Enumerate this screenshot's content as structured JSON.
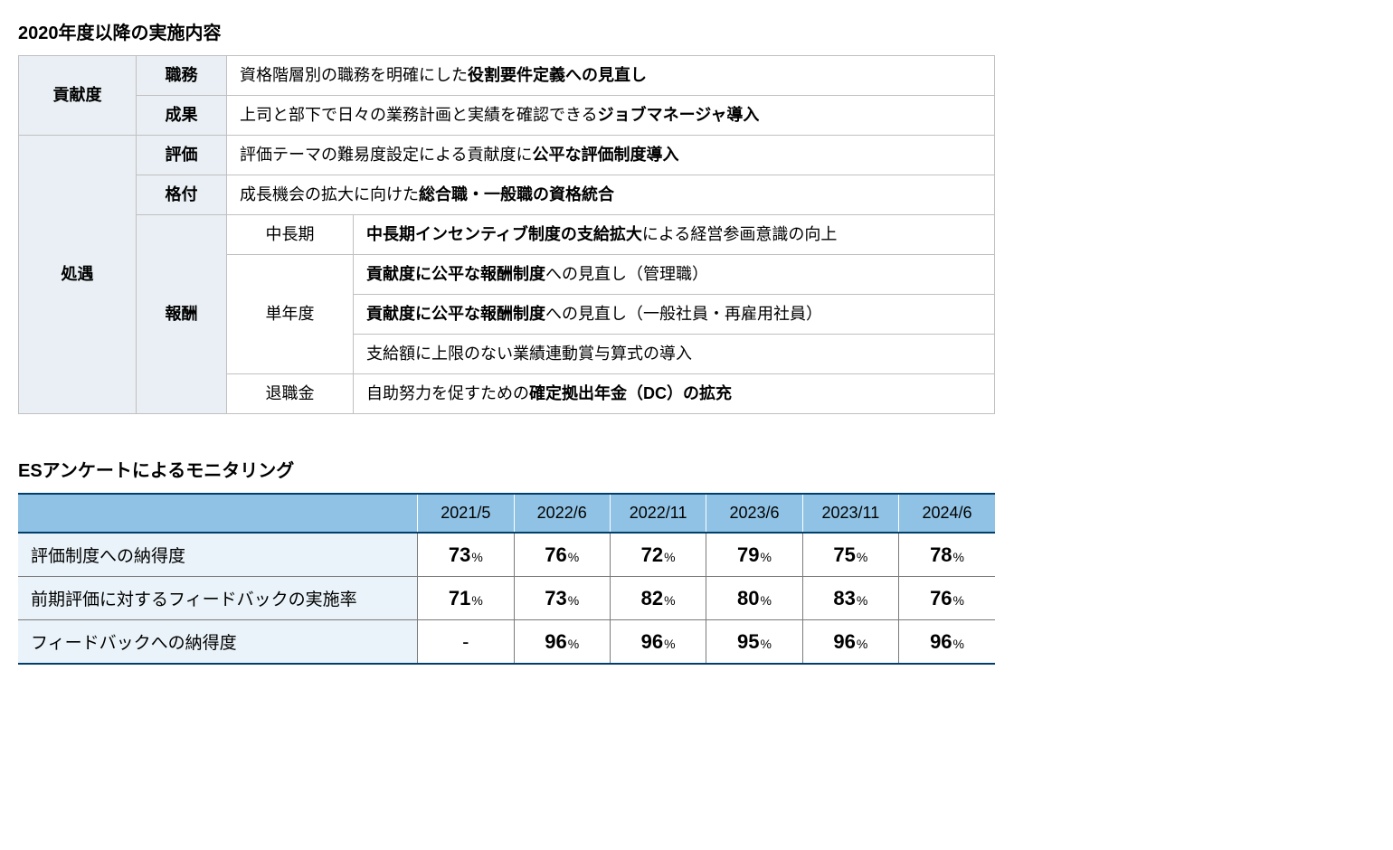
{
  "section1": {
    "title": "2020年度以降の実施内容",
    "columns": {
      "cat_width": 130,
      "sub_width": 100,
      "subcol_width": 140
    },
    "colors": {
      "header_bg": "#e9eff4",
      "border": "#c0c0c0"
    },
    "rows": {
      "contribution": {
        "label": "貢献度",
        "duty_label": "職務",
        "duty_text_pre": "資格階層別の職務を明確にした",
        "duty_text_bold": "役割要件定義への見直し",
        "result_label": "成果",
        "result_text_pre": "上司と部下で日々の業務計画と実績を確認できる",
        "result_text_bold": "ジョブマネージャ導入"
      },
      "treatment": {
        "label": "処遇",
        "eval_label": "評価",
        "eval_text_pre": "評価テーマの難易度設定による貢献度に",
        "eval_text_bold": "公平な評価制度導入",
        "grade_label": "格付",
        "grade_text_pre": "成長機会の拡大に向けた",
        "grade_text_bold": "総合職・一般職の資格統合",
        "reward_label": "報酬",
        "midlong_label": "中長期",
        "midlong_text_bold": "中長期インセンティブ制度の支給拡大",
        "midlong_text_post": "による経営参画意識の向上",
        "single_label": "単年度",
        "single1_bold": "貢献度に公平な報酬制度",
        "single1_post": "への見直し（管理職）",
        "single2_bold": "貢献度に公平な報酬制度",
        "single2_post": "への見直し（一般社員・再雇用社員）",
        "single3_text": "支給額に上限のない業績連動賞与算式の導入",
        "retire_label": "退職金",
        "retire_pre": "自助努力を促すための",
        "retire_bold": "確定拠出年金（DC）の拡充"
      }
    }
  },
  "section2": {
    "title": "ESアンケートによるモニタリング",
    "colors": {
      "head_bg": "#8fc2e4",
      "head_border": "#003e6c",
      "rowlabel_bg": "#eaf3f9",
      "grid": "#7a7a7a"
    },
    "font": {
      "value_size": 22,
      "pct_size": 14,
      "head_size": 18
    },
    "periods": [
      "2021/5",
      "2022/6",
      "2022/11",
      "2023/6",
      "2023/11",
      "2024/6"
    ],
    "percent_suffix": "%",
    "metrics": [
      {
        "label": "評価制度への納得度",
        "values": [
          "73",
          "76",
          "72",
          "79",
          "75",
          "78"
        ]
      },
      {
        "label": "前期評価に対するフィードバックの実施率",
        "values": [
          "71",
          "73",
          "82",
          "80",
          "83",
          "76"
        ]
      },
      {
        "label": "フィードバックへの納得度",
        "values": [
          "-",
          "96",
          "96",
          "95",
          "96",
          "96"
        ]
      }
    ]
  }
}
